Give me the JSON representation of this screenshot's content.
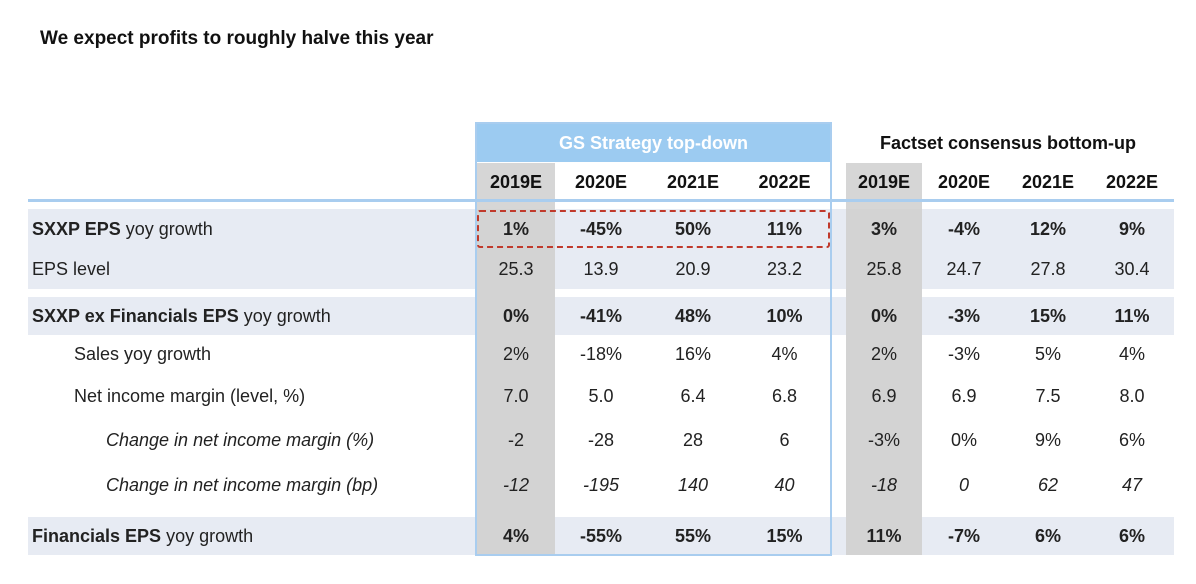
{
  "title": "We expect profits to roughly halve this year",
  "groups": {
    "gs": "GS Strategy top-down",
    "factset": "Factset consensus bottom-up"
  },
  "years": {
    "gs": [
      "2019E",
      "2020E",
      "2021E",
      "2022E"
    ],
    "factset": [
      "2019E",
      "2020E",
      "2021E",
      "2022E"
    ]
  },
  "rows": [
    {
      "label_bold": "SXXP EPS",
      "label_rest": " yoy growth",
      "gs": [
        "1%",
        "-45%",
        "50%",
        "11%"
      ],
      "factset": [
        "3%",
        "-4%",
        "12%",
        "9%"
      ]
    },
    {
      "label_bold": "",
      "label_rest": "EPS level",
      "gs": [
        "25.3",
        "13.9",
        "20.9",
        "23.2"
      ],
      "factset": [
        "25.8",
        "24.7",
        "27.8",
        "30.4"
      ]
    },
    {
      "label_bold": "SXXP ex Financials EPS",
      "label_rest": " yoy growth",
      "gs": [
        "0%",
        "-41%",
        "48%",
        "10%"
      ],
      "factset": [
        "0%",
        "-3%",
        "15%",
        "11%"
      ]
    },
    {
      "label_bold": "",
      "label_rest": "Sales yoy growth",
      "gs": [
        "2%",
        "-18%",
        "16%",
        "4%"
      ],
      "factset": [
        "2%",
        "-3%",
        "5%",
        "4%"
      ]
    },
    {
      "label_bold": "",
      "label_rest": "Net income margin (level, %)",
      "gs": [
        "7.0",
        "5.0",
        "6.4",
        "6.8"
      ],
      "factset": [
        "6.9",
        "6.9",
        "7.5",
        "8.0"
      ]
    },
    {
      "label_bold": "",
      "label_rest": "Change in net income margin (%)",
      "gs": [
        "-2",
        "-28",
        "28",
        "6"
      ],
      "factset": [
        "-3%",
        "0%",
        "9%",
        "6%"
      ]
    },
    {
      "label_bold": "",
      "label_rest": "Change in net income margin (bp)",
      "gs": [
        "-12",
        "-195",
        "140",
        "40"
      ],
      "factset": [
        "-18",
        "0",
        "62",
        "47"
      ]
    },
    {
      "label_bold": "Financials EPS",
      "label_rest": " yoy growth",
      "gs": [
        "4%",
        "-55%",
        "55%",
        "15%"
      ],
      "factset": [
        "11%",
        "-7%",
        "6%",
        "6%"
      ]
    }
  ]
}
